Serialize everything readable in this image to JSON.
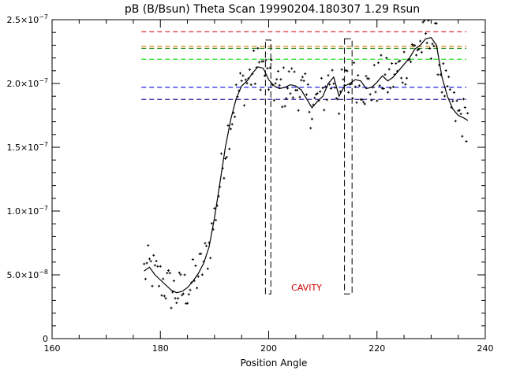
{
  "chart_data": {
    "type": "scatter",
    "title": "pB (B/Bsun) Theta Scan 19990204.180307 1.29 Rsun",
    "xlabel": "Position Angle",
    "ylabel": "",
    "xlim": [
      160,
      240
    ],
    "ylim": [
      0,
      2.5e-07
    ],
    "x_ticks": [
      160,
      180,
      200,
      220,
      240
    ],
    "x_tick_labels": [
      "160",
      "180",
      "200",
      "220",
      "240"
    ],
    "y_ticks": [
      0,
      5e-08,
      1e-07,
      1.5e-07,
      2e-07,
      2.5e-07
    ],
    "y_tick_labels": [
      {
        "mantissa": "0",
        "exp": ""
      },
      {
        "mantissa": "5.0×10",
        "exp": "−8"
      },
      {
        "mantissa": "1.0×10",
        "exp": "−7"
      },
      {
        "mantissa": "1.5×10",
        "exp": "−7"
      },
      {
        "mantissa": "2.0×10",
        "exp": "−7"
      },
      {
        "mantissa": "2.5×10",
        "exp": "−7"
      }
    ],
    "grid": false,
    "reference_lines": [
      {
        "y": 2.405e-07,
        "color": "#e03030"
      },
      {
        "y": 2.29e-07,
        "color": "#e08000"
      },
      {
        "y": 2.275e-07,
        "color": "#209020"
      },
      {
        "y": 2.19e-07,
        "color": "#20e020"
      },
      {
        "y": 1.97e-07,
        "color": "#2020e0"
      },
      {
        "y": 1.875e-07,
        "color": "#2020a0"
      }
    ],
    "reference_lines_x": [
      176.5,
      236.5
    ],
    "boxes": [
      {
        "x": [
          199.4,
          200.4
        ],
        "y": [
          3.5e-08,
          2.34e-07
        ]
      },
      {
        "x": [
          214.0,
          215.4
        ],
        "y": [
          3.5e-08,
          2.35e-07
        ]
      }
    ],
    "annotation": {
      "text": "CAVITY",
      "x": 207.0,
      "y": 4e-08
    },
    "smooth_line": {
      "x": [
        177,
        178,
        179,
        180,
        181,
        182,
        183,
        184,
        185,
        186,
        187,
        188,
        189,
        190,
        191,
        192,
        193,
        194,
        195,
        196,
        197,
        198,
        199,
        200,
        201,
        202,
        203,
        204,
        205,
        206,
        207,
        208,
        209,
        210,
        211,
        212,
        213,
        214,
        215,
        216,
        217,
        218,
        219,
        220,
        221,
        222,
        223,
        224,
        225,
        226,
        227,
        228,
        229,
        230,
        231,
        232,
        233,
        234,
        235,
        236,
        236.8
      ],
      "y": [
        5.3e-08,
        5.6e-08,
        5e-08,
        4.6e-08,
        4.2e-08,
        3.8e-08,
        3.6e-08,
        3.7e-08,
        4e-08,
        4.5e-08,
        5.1e-08,
        5.9e-08,
        7.2e-08,
        9.5e-08,
        1.22e-07,
        1.5e-07,
        1.72e-07,
        1.88e-07,
        1.98e-07,
        2.02e-07,
        2.08e-07,
        2.13e-07,
        2.12e-07,
        2.03e-07,
        1.98e-07,
        1.96e-07,
        1.97e-07,
        1.99e-07,
        1.98e-07,
        1.95e-07,
        1.88e-07,
        1.81e-07,
        1.86e-07,
        1.9e-07,
        2e-07,
        2.05e-07,
        1.9e-07,
        1.98e-07,
        2e-07,
        2.03e-07,
        2.02e-07,
        1.96e-07,
        1.97e-07,
        2.01e-07,
        2.06e-07,
        2.02e-07,
        2.05e-07,
        2.1e-07,
        2.15e-07,
        2.2e-07,
        2.27e-07,
        2.3e-07,
        2.35e-07,
        2.36e-07,
        2.3e-07,
        2.05e-07,
        1.9e-07,
        1.8e-07,
        1.75e-07,
        1.73e-07,
        1.71e-07
      ]
    },
    "scatter_note": "points scattered around the smooth line with noise amplitude",
    "scatter_noise": 1.8e-08,
    "scatter_step": 0.25
  }
}
